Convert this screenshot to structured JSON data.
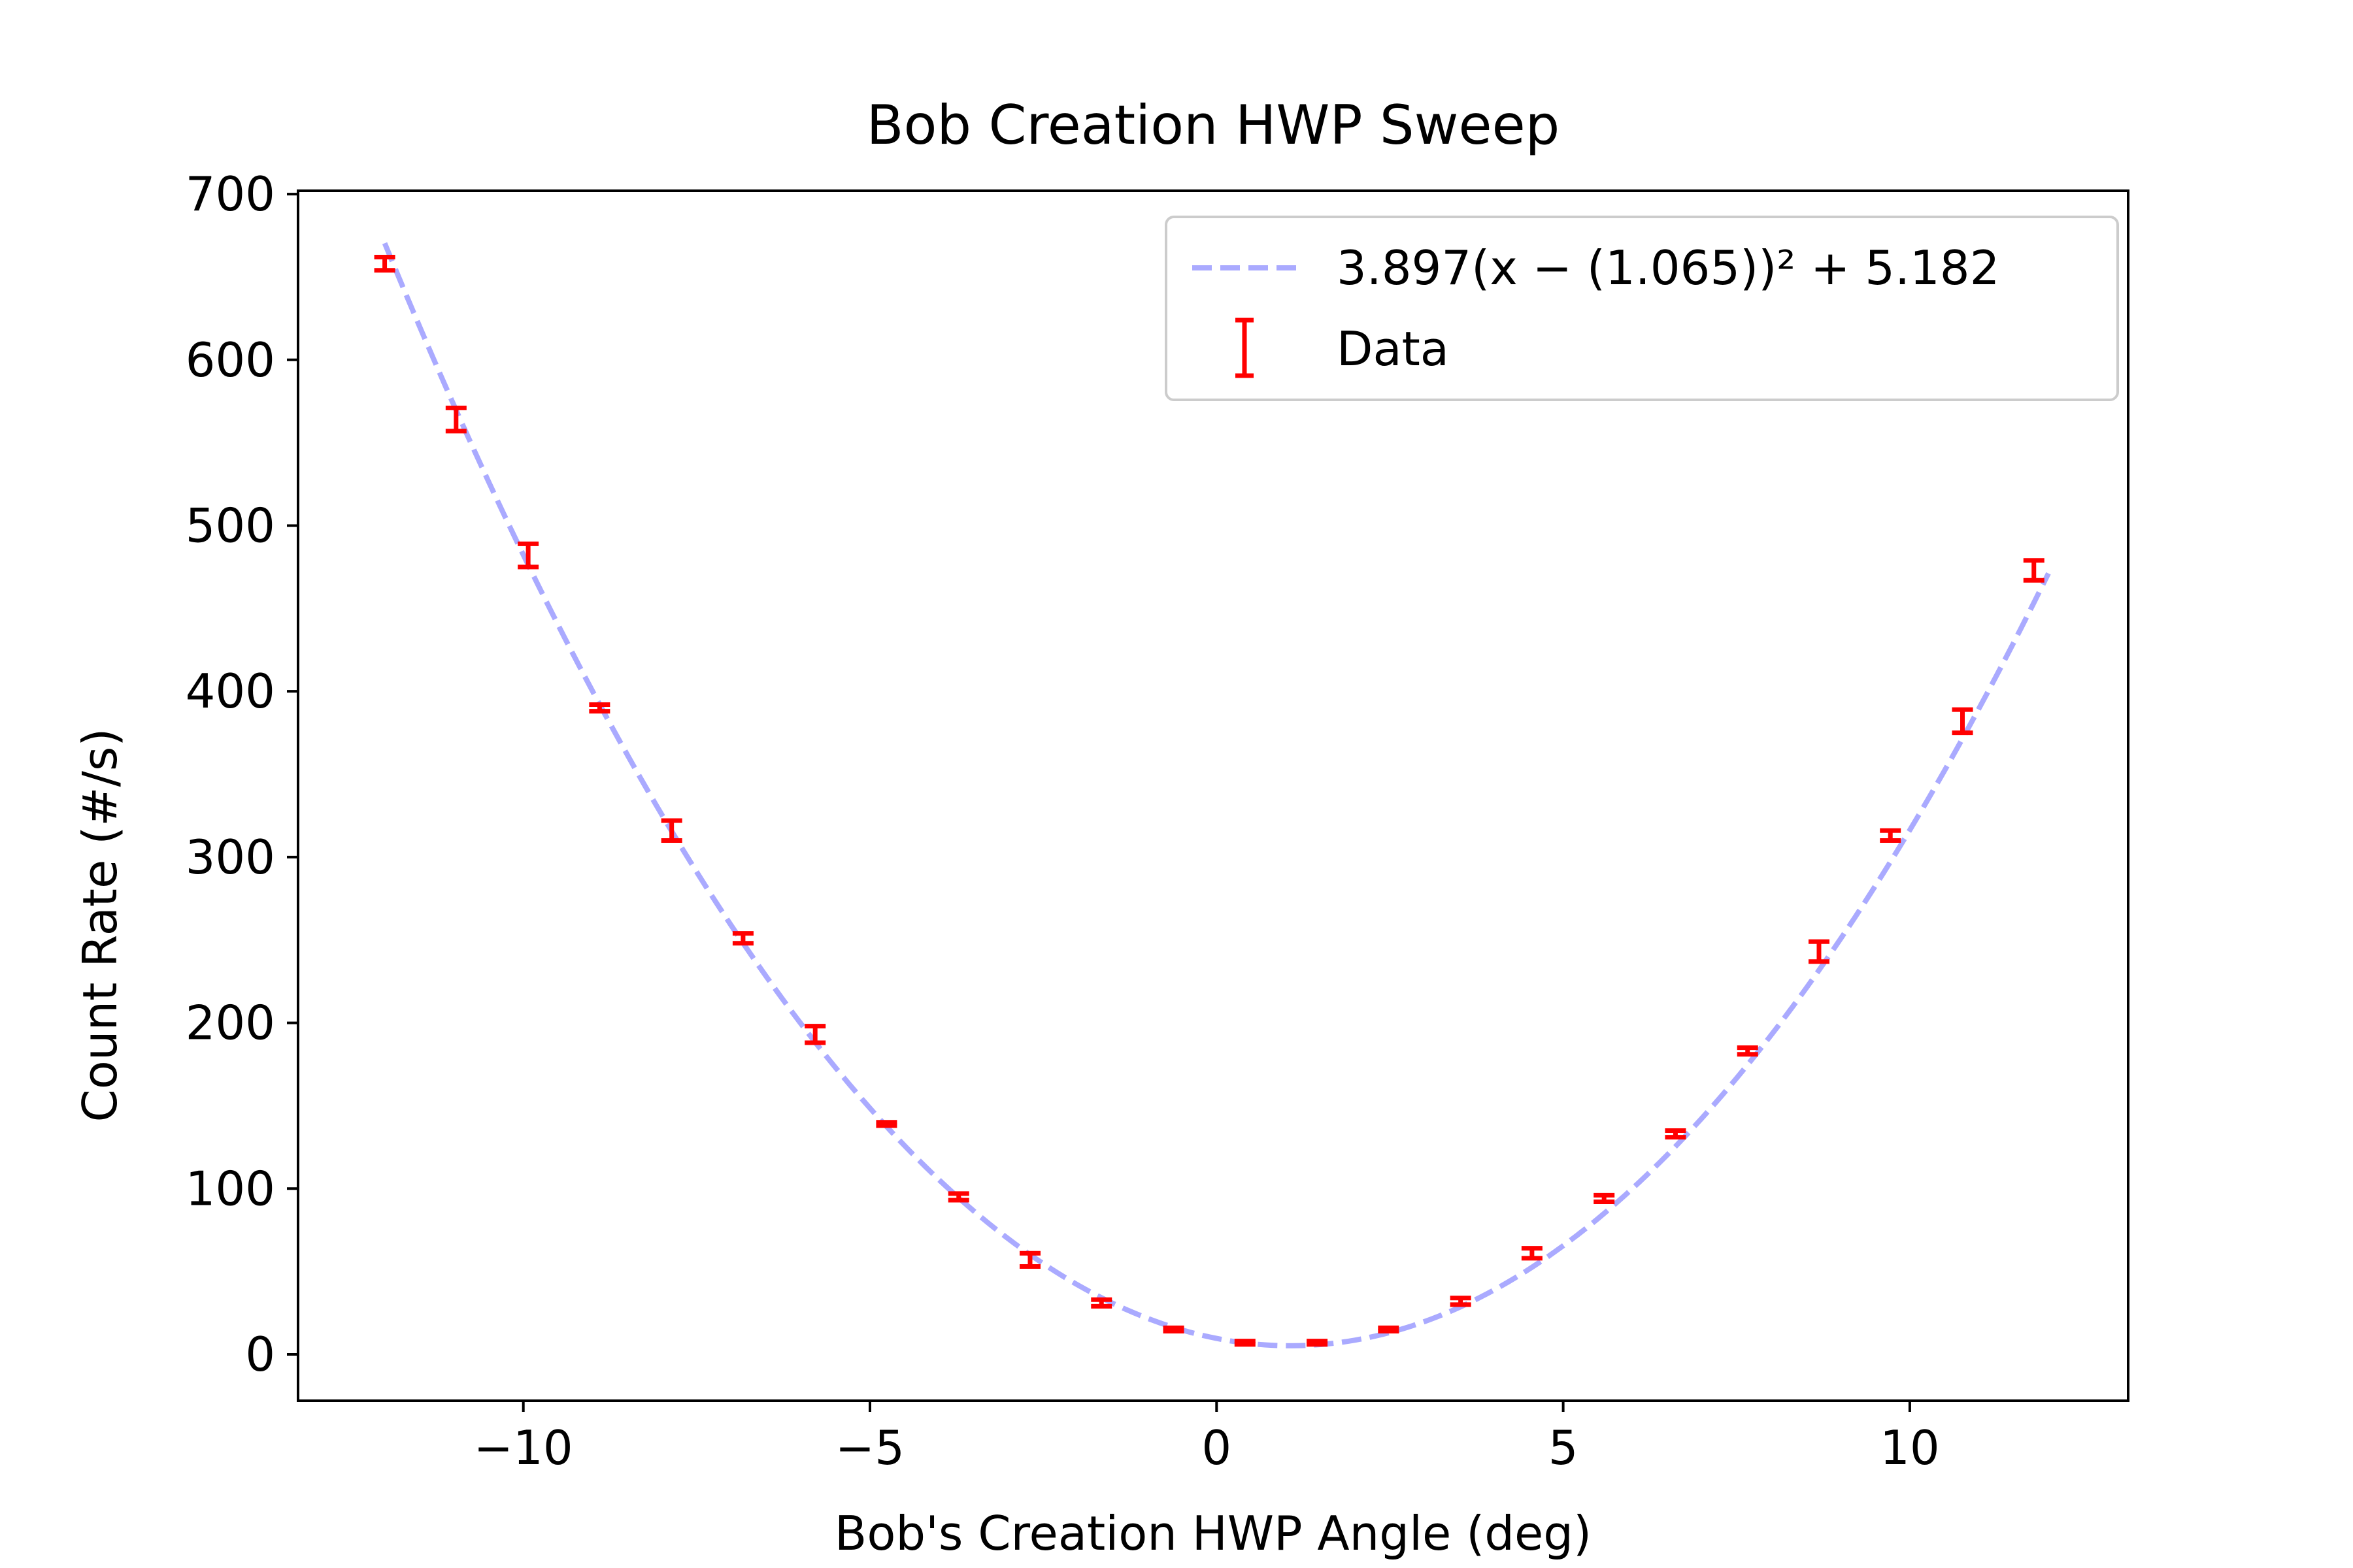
{
  "chart_data": {
    "type": "scatter",
    "title": "Bob Creation HWP Sweep",
    "xlabel": "Bob's Creation HWP Angle (deg)",
    "ylabel": "Count Rate (#/s)",
    "xlim": [
      -13.25,
      13.15
    ],
    "ylim": [
      -28,
      702
    ],
    "x_ticks": [
      -10,
      -5,
      0,
      5,
      10
    ],
    "x_tick_labels": [
      "−10",
      "−5",
      "0",
      "5",
      "10"
    ],
    "y_ticks": [
      0,
      100,
      200,
      300,
      400,
      500,
      600,
      700
    ],
    "y_tick_labels": [
      "0",
      "100",
      "200",
      "300",
      "400",
      "500",
      "600",
      "700"
    ],
    "grid": false,
    "legend_position": "upper right",
    "fit": {
      "label": "3.897(x − (1.065))² + 5.182",
      "a": 3.897,
      "h": 1.065,
      "k": 5.182,
      "x_range": [
        -12,
        12
      ],
      "color": "#aaaaff",
      "style": "dashed"
    },
    "series": [
      {
        "name": "Data",
        "color": "#ff0000",
        "x": [
          -12,
          -10.97,
          -9.93,
          -8.9,
          -7.86,
          -6.83,
          -5.79,
          -4.76,
          -3.72,
          -2.69,
          -1.66,
          -0.62,
          0.41,
          1.45,
          2.48,
          3.52,
          4.55,
          5.59,
          6.62,
          7.66,
          8.69,
          9.72,
          10.76,
          11.79
        ],
        "y": [
          658,
          564,
          482,
          390,
          316,
          251,
          193,
          139,
          95,
          57,
          31,
          15,
          7,
          7,
          15,
          32,
          61,
          94,
          133,
          183,
          243,
          313,
          382,
          473
        ],
        "yerr": [
          4,
          7,
          7,
          2,
          6,
          3,
          5,
          1,
          2,
          4,
          2,
          1,
          1,
          1,
          1,
          2,
          3,
          2,
          2,
          2,
          6,
          3,
          7,
          6
        ]
      }
    ]
  }
}
